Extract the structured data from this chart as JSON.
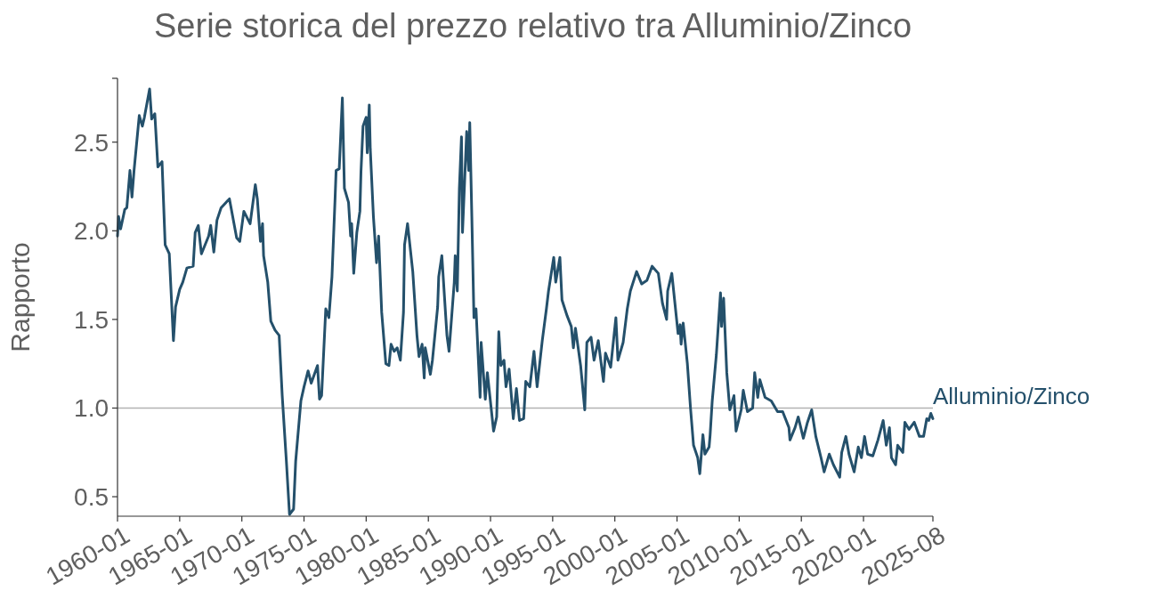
{
  "chart_data": {
    "type": "line",
    "title": "Serie storica del prezzo relativo tra Alluminio/Zinco",
    "ylabel": "Rapporto",
    "xlim": [
      "1960-01",
      "2025-08"
    ],
    "xticks": [
      "1960-01",
      "1965-01",
      "1970-01",
      "1975-01",
      "1980-01",
      "1985-01",
      "1990-01",
      "1995-01",
      "2000-01",
      "2005-01",
      "2010-01",
      "2015-01",
      "2020-01",
      "2025-08"
    ],
    "ylim": [
      0.39,
      2.86
    ],
    "yticks": [
      {
        "value": 0.5,
        "label": "0.5"
      },
      {
        "value": 1,
        "label": "1.0"
      },
      {
        "value": 1.5,
        "label": "1.5"
      },
      {
        "value": 2,
        "label": "2.0"
      },
      {
        "value": 2.5,
        "label": "2.5"
      }
    ],
    "grid": false,
    "legend": false,
    "ref_lines": [
      {
        "axis": "y",
        "value": 1,
        "color": "#b3b3b3"
      }
    ],
    "x": [
      "1960-01",
      "1960-02",
      "1960-04",
      "1960-08",
      "1960-10",
      "1961-01",
      "1961-03",
      "1961-05",
      "1961-10",
      "1962-01",
      "1962-03",
      "1962-08",
      "1962-10",
      "1963-01",
      "1963-04",
      "1963-08",
      "1963-11",
      "1964-03",
      "1964-07",
      "1964-09",
      "1965-01",
      "1965-04",
      "1965-08",
      "1966-02",
      "1966-04",
      "1966-07",
      "1966-10",
      "1967-05",
      "1967-07",
      "1967-10",
      "1968-01",
      "1968-05",
      "1969-01",
      "1969-08",
      "1969-11",
      "1970-03",
      "1970-09",
      "1971-02",
      "1971-04",
      "1971-07",
      "1971-09",
      "1971-10",
      "1972-02",
      "1972-05",
      "1972-09",
      "1973-01",
      "1973-04",
      "1973-08",
      "1973-11",
      "1974-03",
      "1974-05",
      "1974-10",
      "1975-01",
      "1975-05",
      "1975-08",
      "1976-02",
      "1976-04",
      "1976-06",
      "1976-10",
      "1977-01",
      "1977-04",
      "1977-07",
      "1977-08",
      "1977-11",
      "1978-02",
      "1978-04",
      "1978-08",
      "1978-10",
      "1978-11",
      "1979-01",
      "1979-04",
      "1979-07",
      "1979-08",
      "1979-10",
      "1980-01",
      "1980-02",
      "1980-04",
      "1980-05",
      "1980-08",
      "1980-11",
      "1981-01",
      "1981-02",
      "1981-04",
      "1981-08",
      "1981-11",
      "1982-01",
      "1982-04",
      "1982-07",
      "1982-10",
      "1983-01",
      "1983-02",
      "1983-05",
      "1983-10",
      "1984-02",
      "1984-04",
      "1984-07",
      "1984-09",
      "1984-10",
      "1985-03",
      "1985-05",
      "1985-10",
      "1985-11",
      "1986-02",
      "1986-07",
      "1986-09",
      "1987-02",
      "1987-03",
      "1987-05",
      "1987-07",
      "1987-09",
      "1987-10",
      "1988-02",
      "1988-04",
      "1988-05",
      "1988-07",
      "1988-09",
      "1988-11",
      "1989-03",
      "1989-04",
      "1989-08",
      "1989-10",
      "1990-04",
      "1990-07",
      "1990-09",
      "1990-11",
      "1991-02",
      "1991-04",
      "1991-07",
      "1991-11",
      "1992-02",
      "1992-05",
      "1992-09",
      "1992-11",
      "1993-03",
      "1993-07",
      "1993-10",
      "1994-03",
      "1994-07",
      "1994-09",
      "1995-02",
      "1995-04",
      "1995-08",
      "1995-10",
      "1996-03",
      "1996-07",
      "1996-09",
      "1996-11",
      "1997-04",
      "1997-08",
      "1997-10",
      "1998-02",
      "1998-05",
      "1998-09",
      "1999-02",
      "1999-04",
      "1999-09",
      "2000-02",
      "2000-04",
      "2000-09",
      "2001-01",
      "2001-04",
      "2001-10",
      "2002-03",
      "2002-08",
      "2003-01",
      "2003-07",
      "2003-11",
      "2004-03",
      "2004-04",
      "2004-08",
      "2005-02",
      "2005-04",
      "2005-05",
      "2005-07",
      "2005-11",
      "2006-02",
      "2006-05",
      "2006-09",
      "2006-11",
      "2007-02",
      "2007-04",
      "2007-08",
      "2007-09",
      "2007-11",
      "2008-03",
      "2008-07",
      "2008-08",
      "2008-10",
      "2009-01",
      "2009-04",
      "2009-08",
      "2009-10",
      "2010-03",
      "2010-05",
      "2010-09",
      "2011-02",
      "2011-04",
      "2011-07",
      "2011-09",
      "2012-02",
      "2012-08",
      "2013-02",
      "2013-07",
      "2014-01",
      "2014-02",
      "2014-07",
      "2014-10",
      "2015-03",
      "2015-07",
      "2015-11",
      "2016-03",
      "2016-08",
      "2016-11",
      "2017-04",
      "2017-08",
      "2018-02",
      "2018-04",
      "2018-08",
      "2018-11",
      "2019-04",
      "2019-08",
      "2019-11",
      "2020-02",
      "2020-05",
      "2020-10",
      "2021-03",
      "2021-08",
      "2021-11",
      "2022-02",
      "2022-04",
      "2022-08",
      "2022-10",
      "2023-03",
      "2023-05",
      "2023-09",
      "2024-02",
      "2024-07",
      "2024-11",
      "2025-02",
      "2025-04",
      "2025-06",
      "2025-08"
    ],
    "series": [
      {
        "name": "Alluminio/Zinco",
        "color": "#24506b",
        "values": [
          1.97,
          2.08,
          2.01,
          2.12,
          2.13,
          2.34,
          2.19,
          2.34,
          2.65,
          2.59,
          2.64,
          2.8,
          2.63,
          2.66,
          2.36,
          2.39,
          1.92,
          1.87,
          1.38,
          1.57,
          1.67,
          1.71,
          1.79,
          1.8,
          1.99,
          2.03,
          1.87,
          1.97,
          2.03,
          1.88,
          2.06,
          2.13,
          2.18,
          1.96,
          1.94,
          2.11,
          2.04,
          2.26,
          2.18,
          1.94,
          2.04,
          1.86,
          1.71,
          1.49,
          1.44,
          1.41,
          1.07,
          0.7,
          0.4,
          0.43,
          0.7,
          1.04,
          1.12,
          1.21,
          1.14,
          1.24,
          1.05,
          1.07,
          1.56,
          1.51,
          1.74,
          2.18,
          2.34,
          2.35,
          2.75,
          2.24,
          2.16,
          1.97,
          2.04,
          1.76,
          1.99,
          2.11,
          2.33,
          2.59,
          2.64,
          2.44,
          2.71,
          2.46,
          2.08,
          1.82,
          1.97,
          1.82,
          1.54,
          1.25,
          1.24,
          1.36,
          1.32,
          1.34,
          1.27,
          1.54,
          1.92,
          2.04,
          1.77,
          1.41,
          1.29,
          1.36,
          1.17,
          1.34,
          1.19,
          1.27,
          1.57,
          1.74,
          1.86,
          1.41,
          1.32,
          1.71,
          1.86,
          1.66,
          2.24,
          2.53,
          1.99,
          2.56,
          2.34,
          2.61,
          2.08,
          1.51,
          1.56,
          1.06,
          1.37,
          1.05,
          1.2,
          0.87,
          0.95,
          1.43,
          1.24,
          1.27,
          1.12,
          1.22,
          0.94,
          1.11,
          0.93,
          0.94,
          1.15,
          1.12,
          1.32,
          1.12,
          1.38,
          1.56,
          1.66,
          1.85,
          1.71,
          1.85,
          1.61,
          1.52,
          1.46,
          1.34,
          1.45,
          1.24,
          0.99,
          1.37,
          1.4,
          1.27,
          1.38,
          1.15,
          1.31,
          1.23,
          1.51,
          1.27,
          1.37,
          1.56,
          1.66,
          1.77,
          1.7,
          1.72,
          1.8,
          1.76,
          1.59,
          1.5,
          1.66,
          1.76,
          1.42,
          1.47,
          1.36,
          1.48,
          1.25,
          1.0,
          0.79,
          0.72,
          0.63,
          0.85,
          0.74,
          0.78,
          0.85,
          1.04,
          1.3,
          1.65,
          1.46,
          1.62,
          1.2,
          0.99,
          1.07,
          0.87,
          0.99,
          1.1,
          0.98,
          1.0,
          1.2,
          1.06,
          1.16,
          1.06,
          1.04,
          0.98,
          0.98,
          0.89,
          0.82,
          0.89,
          0.95,
          0.83,
          0.92,
          0.99,
          0.84,
          0.72,
          0.64,
          0.74,
          0.68,
          0.61,
          0.75,
          0.84,
          0.74,
          0.64,
          0.78,
          0.72,
          0.84,
          0.74,
          0.73,
          0.82,
          0.93,
          0.79,
          0.89,
          0.72,
          0.68,
          0.79,
          0.75,
          0.92,
          0.88,
          0.92,
          0.84,
          0.84,
          0.94,
          0.93,
          0.97,
          0.94
        ]
      }
    ]
  }
}
